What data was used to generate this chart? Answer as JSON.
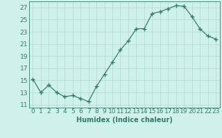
{
  "x": [
    0,
    1,
    2,
    3,
    4,
    5,
    6,
    7,
    8,
    9,
    10,
    11,
    12,
    13,
    14,
    15,
    16,
    17,
    18,
    19,
    20,
    21,
    22,
    23
  ],
  "y": [
    15.2,
    13.0,
    14.2,
    13.0,
    12.3,
    12.5,
    12.0,
    11.5,
    14.0,
    16.0,
    18.0,
    20.0,
    21.5,
    23.5,
    23.5,
    26.0,
    26.3,
    26.8,
    27.3,
    27.2,
    25.5,
    23.5,
    22.3,
    21.8
  ],
  "line_color": "#2e7d6e",
  "marker": "+",
  "marker_size": 4,
  "bg_color": "#cff0eb",
  "grid_color": "#aed8d2",
  "xlabel": "Humidex (Indice chaleur)",
  "xlim": [
    -0.5,
    23.5
  ],
  "ylim": [
    10.5,
    28
  ],
  "yticks": [
    11,
    13,
    15,
    17,
    19,
    21,
    23,
    25,
    27
  ],
  "xtick_labels": [
    "0",
    "1",
    "2",
    "3",
    "4",
    "5",
    "6",
    "7",
    "8",
    "9",
    "10",
    "11",
    "12",
    "13",
    "14",
    "15",
    "16",
    "17",
    "18",
    "19",
    "20",
    "21",
    "22",
    "23"
  ],
  "xlabel_fontsize": 7,
  "tick_fontsize": 6.5
}
